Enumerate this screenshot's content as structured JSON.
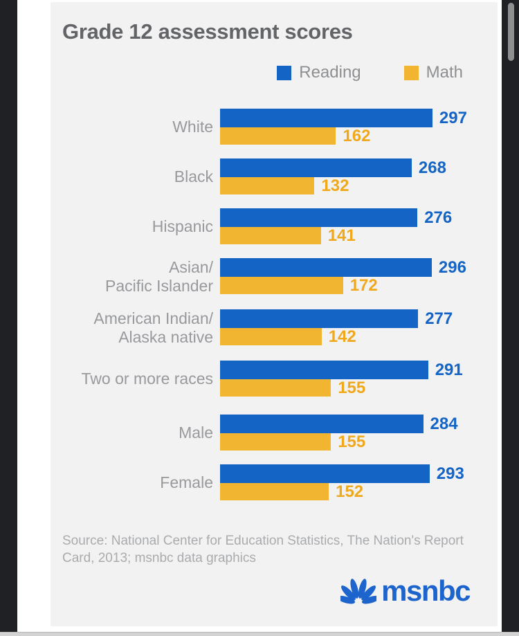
{
  "title": "Grade 12 assessment scores",
  "legend": [
    {
      "label": "Reading",
      "color": "#1464c6"
    },
    {
      "label": "Math",
      "color": "#f2b531"
    }
  ],
  "chart_data": {
    "type": "bar",
    "orientation": "horizontal",
    "title": "Grade 12 assessment scores",
    "x_max": 300,
    "grid": false,
    "legend_position": "top-right",
    "series_names": [
      "Reading",
      "Math"
    ],
    "series_colors": {
      "reading": "#1464c6",
      "math": "#f2b531"
    },
    "value_label_colors": {
      "reading": "#1464c6",
      "math": "#f0a81c"
    },
    "rows": [
      {
        "category": "White",
        "label_lines": [
          "White"
        ],
        "reading": 297,
        "math": 162
      },
      {
        "category": "Black",
        "label_lines": [
          "Black"
        ],
        "reading": 268,
        "math": 132
      },
      {
        "category": "Hispanic",
        "label_lines": [
          "Hispanic"
        ],
        "reading": 276,
        "math": 141
      },
      {
        "category": "Asian/Pacific Islander",
        "label_lines": [
          "Asian/",
          "Pacific Islander"
        ],
        "reading": 296,
        "math": 172
      },
      {
        "category": "American Indian/Alaska native",
        "label_lines": [
          "American Indian/",
          "Alaska native"
        ],
        "reading": 277,
        "math": 142
      },
      {
        "category": "Two or more races",
        "label_lines": [
          "Two or more races"
        ],
        "reading": 291,
        "math": 155
      },
      {
        "category": "Male",
        "label_lines": [
          "Male"
        ],
        "reading": 284,
        "math": 155,
        "gap_before": true
      },
      {
        "category": "Female",
        "label_lines": [
          "Female"
        ],
        "reading": 293,
        "math": 152
      }
    ]
  },
  "source": "Source: National Center for Education Statistics, The Nation's Report Card, 2013; msnbc data graphics",
  "logo": {
    "text": "msnbc",
    "color": "#1d64cd",
    "icon": "nbc-peacock-icon"
  },
  "colors": {
    "card_background": "#f2f2f3",
    "page_background": "#ffffff",
    "edge_strips": "#202124",
    "title_text": "#636467",
    "category_text": "#98999c",
    "legend_text": "#8d8f91",
    "source_text": "#a9abad",
    "bottom_bar": "#d3d3d4",
    "scrollbar_thumb": "#8f8f8f"
  }
}
